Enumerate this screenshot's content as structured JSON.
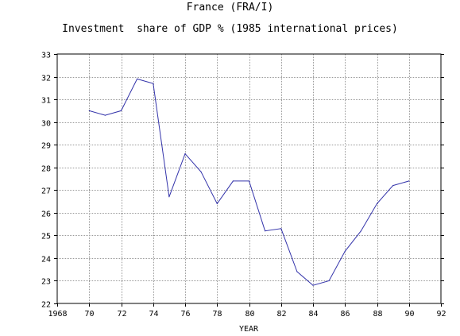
{
  "chart_data": {
    "type": "line",
    "title": "France (FRA/I)",
    "subtitle": "Investment  share of GDP % (1985 international prices)",
    "xlabel": "YEAR",
    "ylabel": "",
    "xlim": [
      1968,
      1992
    ],
    "ylim": [
      22,
      33
    ],
    "x_ticks": [
      1968,
      1970,
      1972,
      1974,
      1976,
      1978,
      1980,
      1982,
      1984,
      1986,
      1988,
      1990,
      1992
    ],
    "x_tick_labels": [
      "1968",
      "70",
      "72",
      "74",
      "76",
      "78",
      "80",
      "82",
      "84",
      "86",
      "88",
      "90",
      "92"
    ],
    "y_ticks": [
      22,
      23,
      24,
      25,
      26,
      27,
      28,
      29,
      30,
      31,
      32,
      33
    ],
    "y_tick_labels": [
      "22",
      "23",
      "24",
      "25",
      "26",
      "27",
      "28",
      "29",
      "30",
      "31",
      "32",
      "33"
    ],
    "grid": true,
    "series": [
      {
        "color": "#3333aa",
        "x": [
          1970,
          1971,
          1972,
          1973,
          1974,
          1975,
          1976,
          1977,
          1978,
          1979,
          1980,
          1981,
          1982,
          1983,
          1984,
          1985,
          1986,
          1987,
          1988,
          1989,
          1990
        ],
        "values": [
          30.5,
          30.3,
          30.5,
          31.9,
          31.7,
          26.7,
          28.6,
          27.8,
          26.4,
          27.4,
          27.4,
          25.2,
          25.3,
          23.4,
          22.8,
          23.0,
          24.3,
          25.2,
          26.4,
          27.2,
          27.4
        ]
      }
    ]
  }
}
